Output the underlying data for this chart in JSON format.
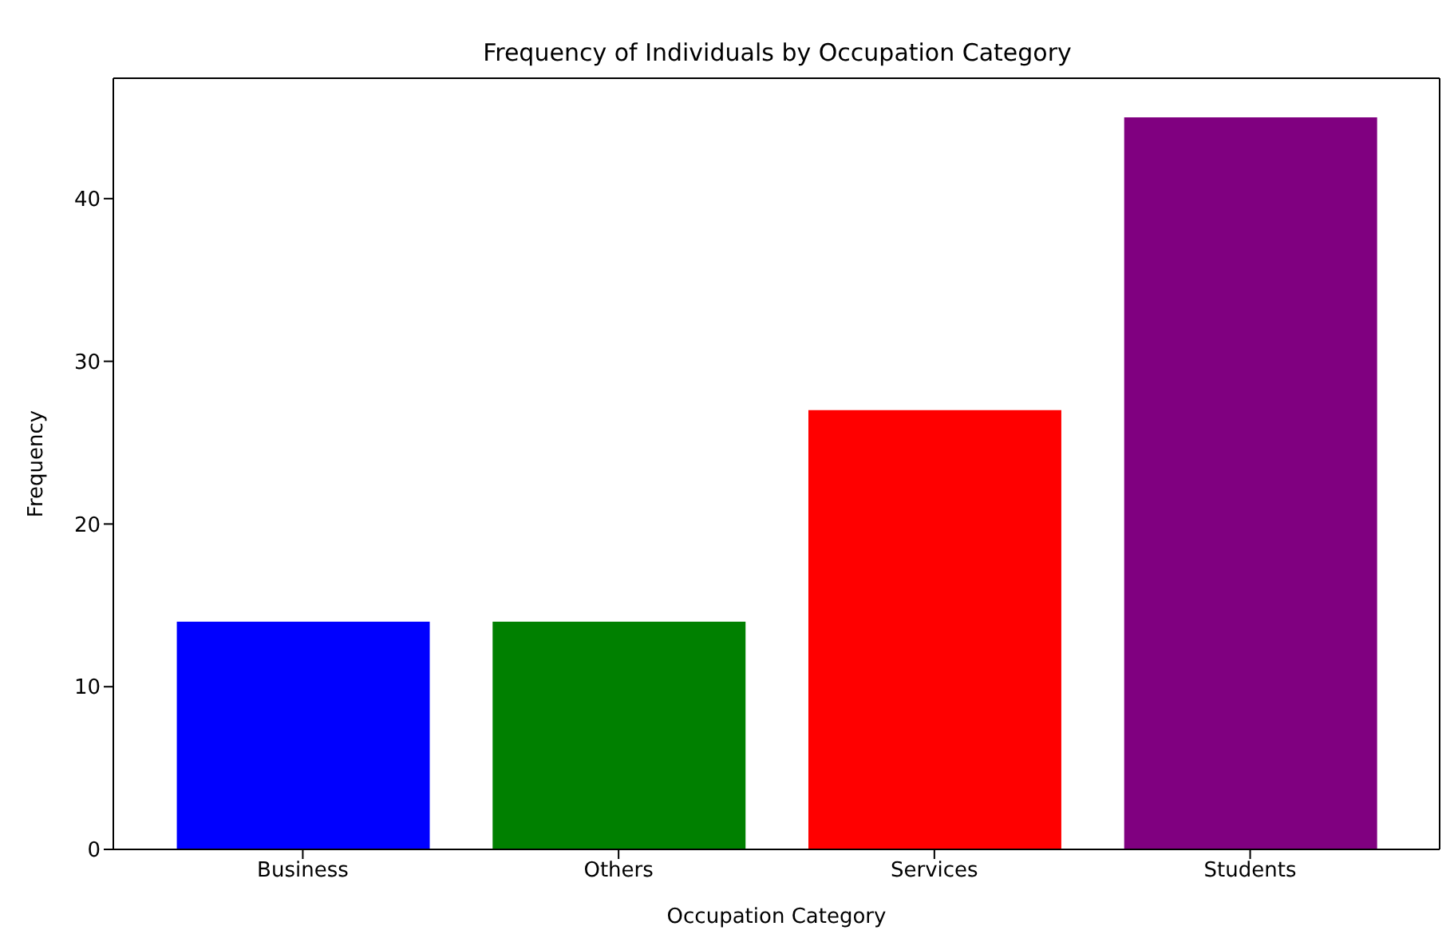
{
  "chart_data": {
    "type": "bar",
    "title": "Frequency of Individuals by Occupation Category",
    "xlabel": "Occupation Category",
    "ylabel": "Frequency",
    "categories": [
      "Business",
      "Others",
      "Services",
      "Students"
    ],
    "values": [
      14,
      14,
      27,
      45
    ],
    "colors": [
      "#0000ff",
      "#008000",
      "#ff0000",
      "#800080"
    ],
    "ylim": [
      0,
      47.4
    ],
    "yticks": [
      0,
      10,
      20,
      30,
      40
    ]
  }
}
